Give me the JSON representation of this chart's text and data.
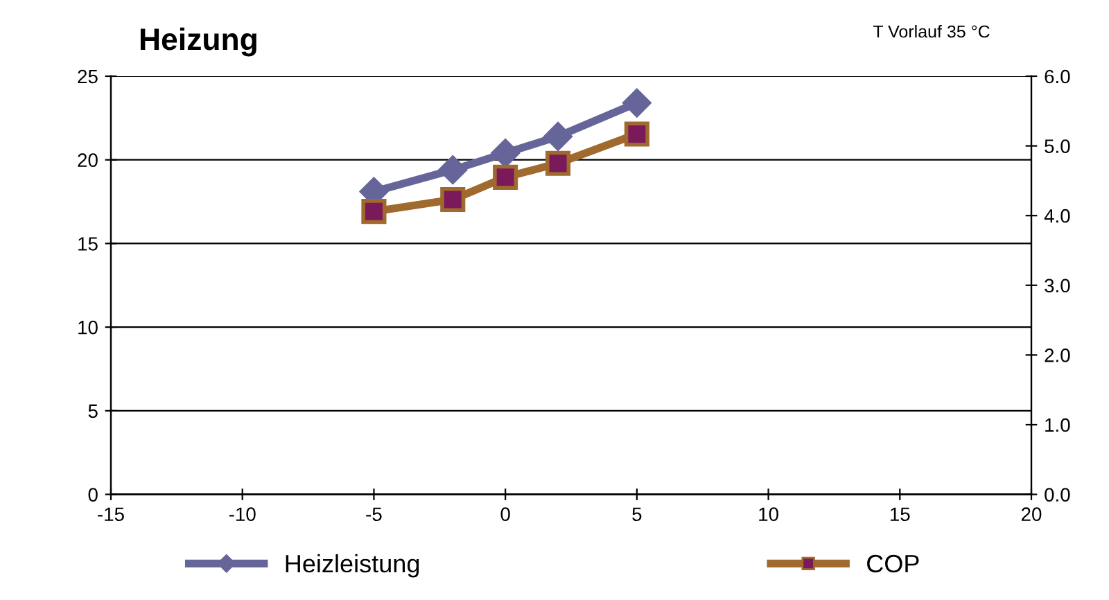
{
  "chart_data": {
    "type": "line",
    "title": "Heizung",
    "annotations": [
      "T Vorlauf 35 °C"
    ],
    "x": [
      -5,
      -2,
      0,
      2,
      5
    ],
    "series": [
      {
        "name": "Heizleistung",
        "color": "#65659a",
        "values": [
          18.1,
          19.4,
          20.4,
          21.4,
          23.4
        ],
        "marker": "diamond"
      },
      {
        "name": "COP",
        "color": "#a0692e",
        "values": [
          4.06,
          4.23,
          4.55,
          4.75,
          5.17
        ],
        "axis": "y2",
        "marker": "square"
      }
    ],
    "xlim": [
      -15,
      20
    ],
    "xticks": [
      -15,
      -10,
      -5,
      0,
      5,
      10,
      15,
      20
    ],
    "ylim": [
      0,
      25
    ],
    "yticks": [
      0,
      5,
      10,
      15,
      20,
      25
    ],
    "y2lim": [
      0,
      6
    ],
    "y2ticks": [
      {
        "value": 0,
        "label": "0.0"
      },
      {
        "value": 1,
        "label": "1.0"
      },
      {
        "value": 2,
        "label": "2.0"
      },
      {
        "value": 3,
        "label": "3.0"
      },
      {
        "value": 4,
        "label": "4.0"
      },
      {
        "value": 5,
        "label": "5.0"
      },
      {
        "value": 6,
        "label": "6.0"
      }
    ],
    "grid": "y",
    "legend": "bottom",
    "line_style": "solid"
  }
}
